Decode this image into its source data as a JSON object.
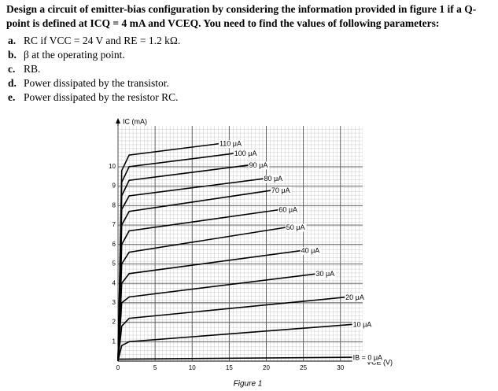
{
  "question": {
    "text": "Design a circuit of emitter-bias configuration by considering the information provided in figure 1 if a Q-point is defined at ICQ = 4 mA and VCEQ. You need to find the values of following parameters:"
  },
  "items": [
    {
      "label": "a.",
      "text": "RC if VCC = 24 V and RE = 1.2 kΩ."
    },
    {
      "label": "b.",
      "text": "β at the operating point."
    },
    {
      "label": "c.",
      "text": "RB."
    },
    {
      "label": "d.",
      "text": "Power dissipated by the transistor."
    },
    {
      "label": "e.",
      "text": "Power dissipated by the resistor RC."
    }
  ],
  "chart_data": {
    "type": "line",
    "caption": "Figure 1",
    "x_label": "VCE (V)",
    "y_label": "IC (mA)",
    "xlim": [
      0,
      33
    ],
    "ylim": [
      0,
      12.1
    ],
    "xticks": [
      0,
      5,
      10,
      15,
      20,
      25,
      30
    ],
    "yticks": [
      1,
      2,
      3,
      4,
      5,
      6,
      7,
      8,
      9,
      10
    ],
    "grid": true,
    "color": "#000000",
    "series": [
      {
        "name": "IB = 0 μA",
        "x": [
          0,
          32
        ],
        "values": [
          0.1,
          0.2
        ]
      },
      {
        "name": "10 μA",
        "x": [
          0,
          0.5,
          1.5,
          32
        ],
        "values": [
          0,
          0.8,
          1.0,
          1.9
        ]
      },
      {
        "name": "20 μA",
        "x": [
          0,
          0.5,
          1.5,
          31
        ],
        "values": [
          0,
          1.8,
          2.2,
          3.3
        ]
      },
      {
        "name": "30 μA",
        "x": [
          0,
          0.5,
          1.5,
          27
        ],
        "values": [
          0,
          3.0,
          3.3,
          4.5
        ]
      },
      {
        "name": "40 μA",
        "x": [
          0,
          0.5,
          1.5,
          25
        ],
        "values": [
          0,
          4.0,
          4.5,
          5.7
        ]
      },
      {
        "name": "50 μA",
        "x": [
          0,
          0.5,
          1.5,
          23
        ],
        "values": [
          0,
          5.0,
          5.6,
          6.9
        ]
      },
      {
        "name": "60 μA",
        "x": [
          0,
          0.5,
          1.5,
          22
        ],
        "values": [
          0,
          6.0,
          6.7,
          7.8
        ]
      },
      {
        "name": "70 μA",
        "x": [
          0,
          0.5,
          1.5,
          21
        ],
        "values": [
          0,
          7.0,
          7.7,
          8.8
        ]
      },
      {
        "name": "80 μA",
        "x": [
          0,
          0.5,
          1.5,
          20
        ],
        "values": [
          0,
          7.8,
          8.5,
          9.4
        ]
      },
      {
        "name": "90 μA",
        "x": [
          0,
          0.5,
          1.5,
          18
        ],
        "values": [
          0,
          8.5,
          9.3,
          10.1
        ]
      },
      {
        "name": "100 μA",
        "x": [
          0,
          0.5,
          1.5,
          16
        ],
        "values": [
          0,
          9.2,
          10.0,
          10.7
        ]
      },
      {
        "name": "110 μA",
        "x": [
          0,
          0.5,
          1.5,
          14
        ],
        "values": [
          0,
          9.8,
          10.6,
          11.2
        ]
      }
    ]
  }
}
